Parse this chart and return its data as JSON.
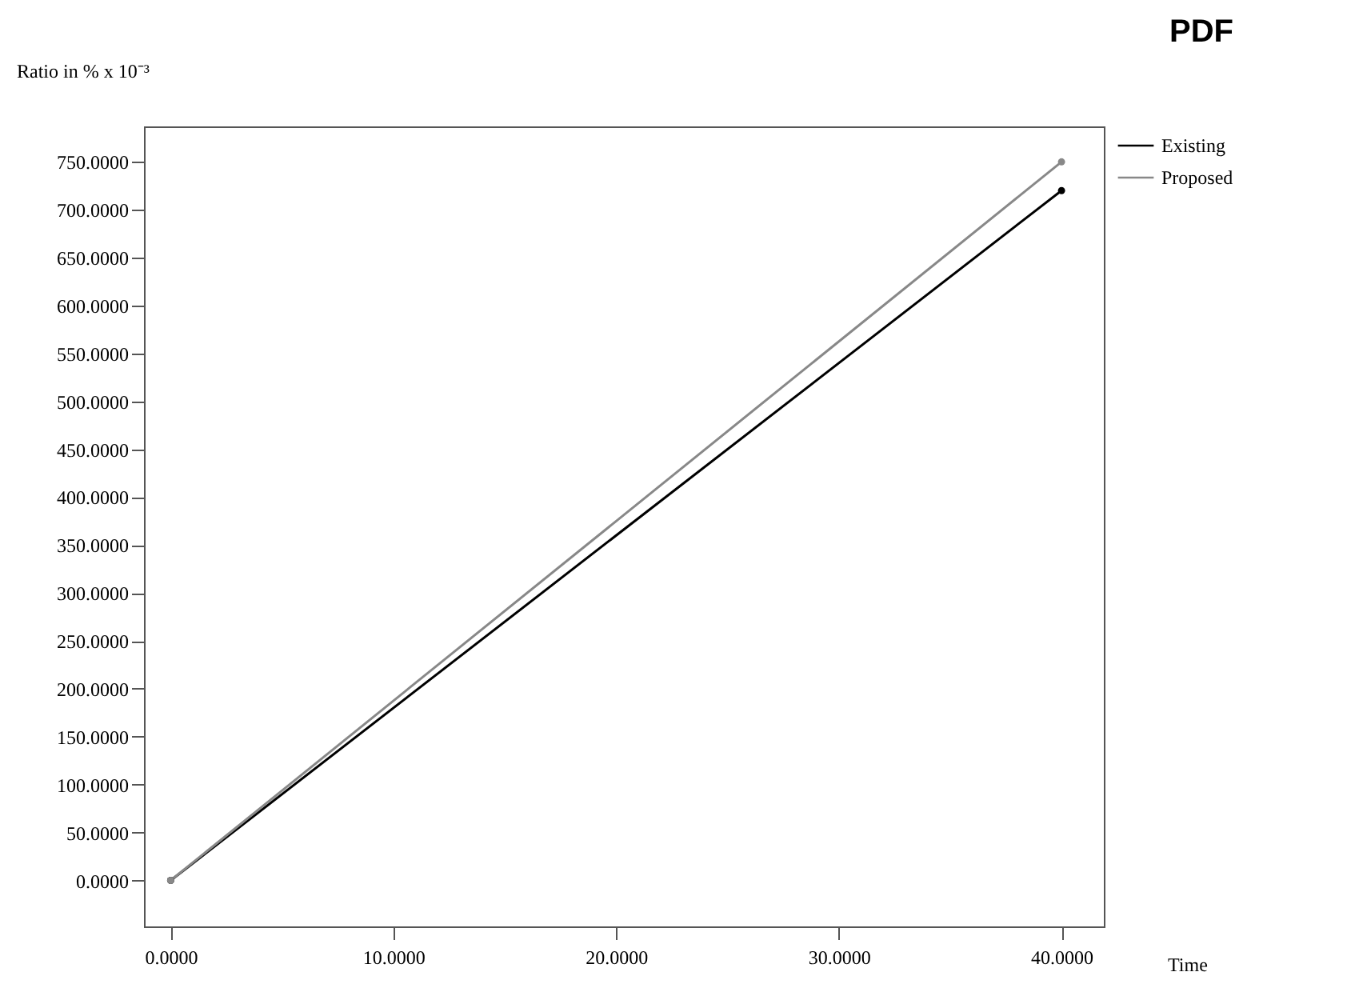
{
  "chart_data": {
    "type": "line",
    "title": "PDF",
    "xlabel": "Time",
    "ylabel": "Ratio in % x 10⁻³",
    "x": [
      0,
      40
    ],
    "series": [
      {
        "name": "Existing",
        "color": "#000000",
        "values": [
          0,
          720
        ]
      },
      {
        "name": "Proposed",
        "color": "#888888",
        "values": [
          0,
          750
        ]
      }
    ],
    "xlim": [
      -1.2,
      41.9
    ],
    "ylim": [
      -48,
      787
    ],
    "xticks": [
      {
        "value": 0,
        "label": "0.0000"
      },
      {
        "value": 10,
        "label": "10.0000"
      },
      {
        "value": 20,
        "label": "20.0000"
      },
      {
        "value": 30,
        "label": "30.0000"
      },
      {
        "value": 40,
        "label": "40.0000"
      }
    ],
    "yticks": [
      {
        "value": 0,
        "label": "0.0000"
      },
      {
        "value": 50,
        "label": "50.0000"
      },
      {
        "value": 100,
        "label": "100.0000"
      },
      {
        "value": 150,
        "label": "150.0000"
      },
      {
        "value": 200,
        "label": "200.0000"
      },
      {
        "value": 250,
        "label": "250.0000"
      },
      {
        "value": 300,
        "label": "300.0000"
      },
      {
        "value": 350,
        "label": "350.0000"
      },
      {
        "value": 400,
        "label": "400.0000"
      },
      {
        "value": 450,
        "label": "450.0000"
      },
      {
        "value": 500,
        "label": "500.0000"
      },
      {
        "value": 550,
        "label": "550.0000"
      },
      {
        "value": 600,
        "label": "600.0000"
      },
      {
        "value": 650,
        "label": "650.0000"
      },
      {
        "value": 700,
        "label": "700.0000"
      },
      {
        "value": 750,
        "label": "750.0000"
      }
    ],
    "grid": false,
    "legend": "top right",
    "marker": "circle",
    "line_style": "solid"
  }
}
